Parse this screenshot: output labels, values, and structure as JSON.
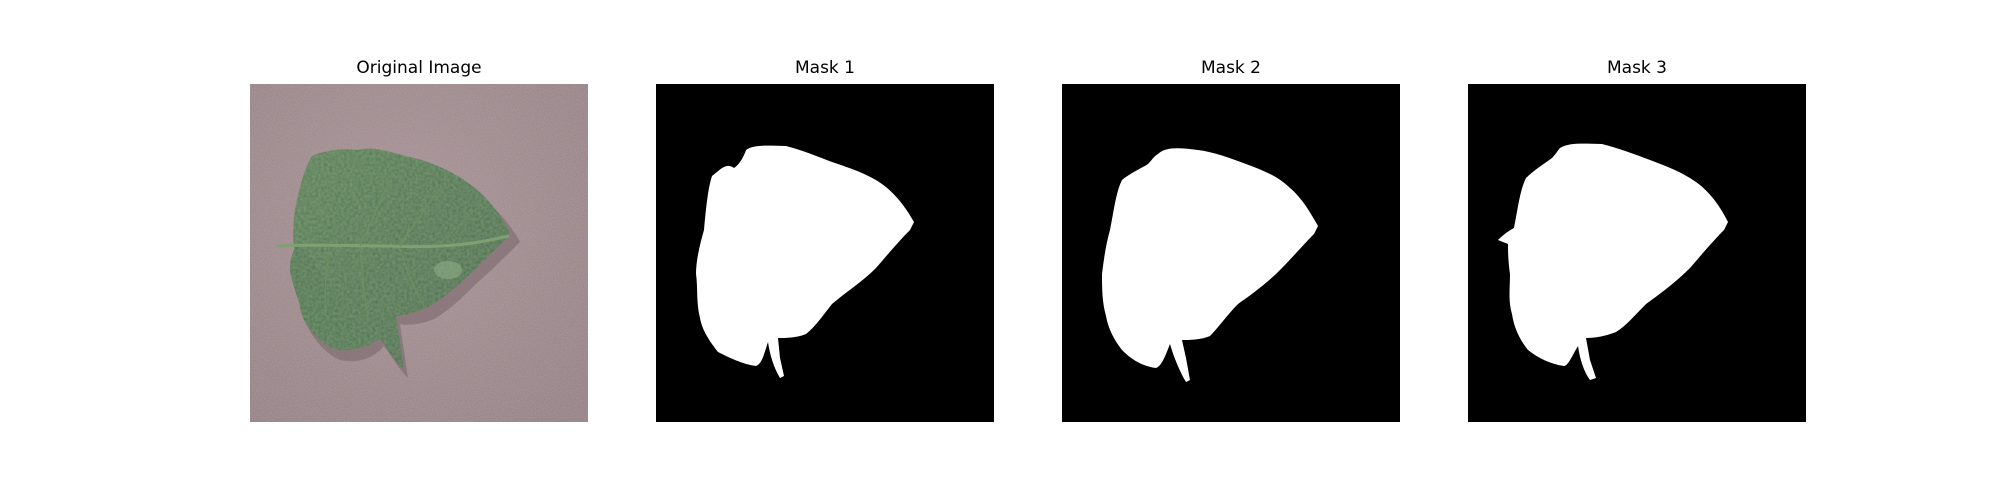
{
  "figure": {
    "panels": [
      {
        "id": "original",
        "title": "Original Image"
      },
      {
        "id": "mask1",
        "title": "Mask 1"
      },
      {
        "id": "mask2",
        "title": "Mask 2"
      },
      {
        "id": "mask3",
        "title": "Mask 3"
      }
    ]
  },
  "colors": {
    "background": "#ffffff",
    "mask_background": "#000000",
    "mask_foreground": "#ffffff",
    "photo_background": "#9c8689",
    "leaf_green": "#4f7a4c"
  }
}
